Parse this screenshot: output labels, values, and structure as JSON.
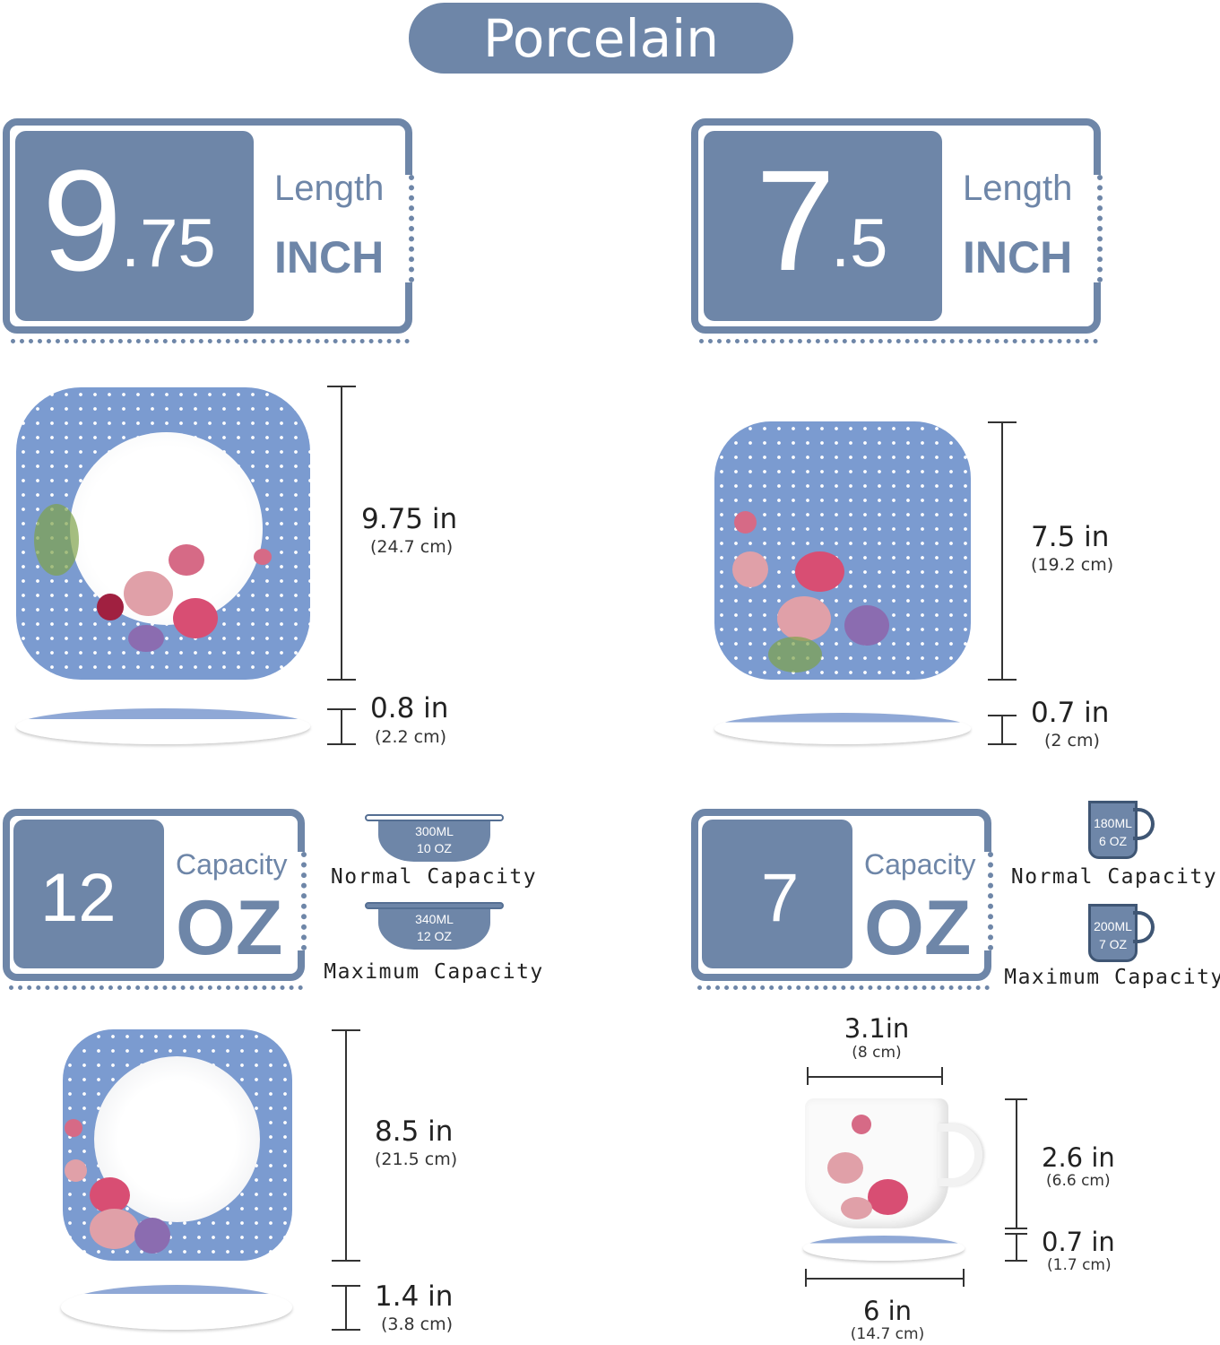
{
  "title": "Porcelain",
  "accent_color": "#6e86a8",
  "plate_color": "#7b9bd0",
  "cards": [
    {
      "value_main": "9",
      "value_dec": ".75",
      "label": "Length",
      "unit": "INCH"
    },
    {
      "value_main": "7",
      "value_dec": ".5",
      "label": "Length",
      "unit": "INCH"
    },
    {
      "value_main": "12",
      "value_dec": "",
      "label": "Capacity",
      "unit": "OZ"
    },
    {
      "value_main": "7",
      "value_dec": "",
      "label": "Capacity",
      "unit": "OZ"
    }
  ],
  "dinner_plate": {
    "width": "9.75 in",
    "width_cm": "(24.7 cm)",
    "height": "0.8 in",
    "height_cm": "(2.2 cm)"
  },
  "dessert_plate": {
    "width": "7.5 in",
    "width_cm": "(19.2 cm)",
    "height": "0.7 in",
    "height_cm": "(2 cm)"
  },
  "soup_plate": {
    "width": "8.5 in",
    "width_cm": "(21.5 cm)",
    "height": "1.4 in",
    "height_cm": "(3.8 cm)"
  },
  "cup": {
    "diameter": "3.1in",
    "diameter_cm": "(8 cm)",
    "height": "2.6 in",
    "height_cm": "(6.6 cm)",
    "saucer_height": "0.7 in",
    "saucer_height_cm": "(1.7 cm)",
    "saucer_width": "6 in",
    "saucer_width_cm": "(14.7 cm)"
  },
  "bowl_capacity": {
    "normal_ml": "300ML",
    "normal_oz": "10 OZ",
    "normal_label": "Normal Capacity",
    "max_ml": "340ML",
    "max_oz": "12 OZ",
    "max_label": "Maximum Capacity"
  },
  "mug_capacity": {
    "normal_ml": "180ML",
    "normal_oz": "6 OZ",
    "normal_label": "Normal Capacity",
    "max_ml": "200ML",
    "max_oz": "7 OZ",
    "max_label": "Maximum Capacity"
  }
}
